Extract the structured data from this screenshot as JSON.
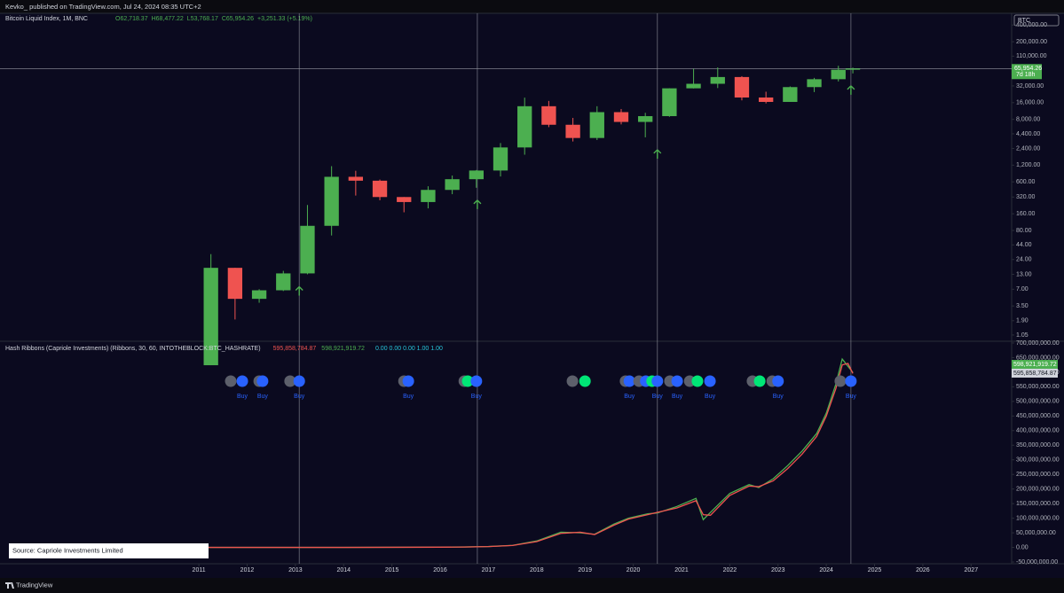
{
  "header": {
    "text": "Kevko_ published on TradingView.com, Jul 24, 2024 08:35 UTC+2"
  },
  "chart_data": [
    {
      "type": "candlestick",
      "title": "Bitcoin Liquid Index, 1M, BNC",
      "info": [
        "O62,718.37",
        "H68,477.22",
        "L53,768.17",
        "C65,954.26",
        "+3,251.33 (+5.19%)"
      ],
      "symbol": "BTC",
      "countdown": "7d 18h",
      "last_price": {
        "value": 65954.26,
        "label": "65,954.26"
      },
      "x": [
        2011.25,
        2011.75,
        2012.25,
        2012.75,
        2013.25,
        2013.75,
        2014.25,
        2014.75,
        2015.25,
        2015.75,
        2016.25,
        2016.75,
        2017.25,
        2017.75,
        2018.25,
        2018.75,
        2019.25,
        2019.75,
        2020.25,
        2020.75,
        2021.25,
        2021.75,
        2022.25,
        2022.75,
        2023.25,
        2023.75,
        2024.25,
        2024.55
      ],
      "open": [
        0.3,
        17,
        4.7,
        6.7,
        13.5,
        97,
        740,
        630,
        320,
        260,
        430,
        670,
        960,
        2500,
        13800,
        6400,
        3700,
        10800,
        7200,
        9150,
        29000,
        35000,
        46300,
        19800,
        16500,
        30500,
        42300,
        62718.37
      ],
      "high": [
        30,
        17,
        7,
        15,
        230,
        1150,
        950,
        660,
        320,
        500,
        780,
        980,
        3000,
        19700,
        17200,
        8500,
        13800,
        12300,
        10500,
        29000,
        64800,
        69000,
        48000,
        25200,
        31400,
        44700,
        73800,
        68477.22
      ],
      "low": [
        0.3,
        2,
        4,
        6.5,
        13,
        65,
        340,
        280,
        170,
        200,
        360,
        470,
        750,
        1850,
        5800,
        3200,
        3400,
        6500,
        3800,
        8900,
        28800,
        29300,
        17600,
        15500,
        16500,
        24800,
        38500,
        53768.17
      ],
      "close": [
        17,
        4.7,
        6.7,
        13.5,
        97,
        740,
        630,
        320,
        260,
        430,
        670,
        960,
        2500,
        13800,
        6400,
        3700,
        10800,
        7200,
        9150,
        29000,
        35000,
        46300,
        19800,
        16500,
        30500,
        42300,
        62700,
        65954.26
      ],
      "up_color": "#4caf50",
      "down_color": "#ef5350",
      "log_scale": true,
      "xlim": [
        2006.88,
        2027.84
      ],
      "ylim": [
        0.81,
        650000
      ],
      "yticks": [
        {
          "value": 400000,
          "label": "400,000.00"
        },
        {
          "value": 200000,
          "label": "200,000.00"
        },
        {
          "value": 110000,
          "label": "110,000.00"
        },
        {
          "value": 32000,
          "label": "32,000.00"
        },
        {
          "value": 16000,
          "label": "16,000.00"
        },
        {
          "value": 8000,
          "label": "8,000.00"
        },
        {
          "value": 4400,
          "label": "4,400.00"
        },
        {
          "value": 2400,
          "label": "2,400.00"
        },
        {
          "value": 1200,
          "label": "1,200.00"
        },
        {
          "value": 600,
          "label": "600.00"
        },
        {
          "value": 320,
          "label": "320.00"
        },
        {
          "value": 160,
          "label": "160.00"
        },
        {
          "value": 80,
          "label": "80.00"
        },
        {
          "value": 44,
          "label": "44.00"
        },
        {
          "value": 24,
          "label": "24.00"
        },
        {
          "value": 13,
          "label": "13.00"
        },
        {
          "value": 7,
          "label": "7.00"
        },
        {
          "value": 3.5,
          "label": "3.50"
        },
        {
          "value": 1.9,
          "label": "1.90"
        },
        {
          "value": 1.05,
          "label": "1.05"
        }
      ],
      "vlines": [
        2013.08,
        2016.77,
        2020.5,
        2024.51
      ]
    },
    {
      "type": "line",
      "title": "Hash Ribbons (Capriole Investments) (Ribbons, 30, 60, INTOTHEBLOCK:BTC_HASHRATE)",
      "extra": "0.00  0.00  0.00  1.00  1.00",
      "x": [
        2011,
        2012,
        2013,
        2014,
        2015,
        2016,
        2016.5,
        2017,
        2017.5,
        2018,
        2018.5,
        2018.9,
        2019.2,
        2019.6,
        2019.9,
        2020.3,
        2020.5,
        2020.9,
        2021.3,
        2021.45,
        2021.6,
        2022,
        2022.4,
        2022.6,
        2022.9,
        2023.2,
        2023.5,
        2023.8,
        2024,
        2024.2,
        2024.33,
        2024.45,
        2024.55
      ],
      "series": [
        {
          "color": "#4caf50",
          "last": {
            "value": 598921919.72,
            "label": "598,921,919.72"
          },
          "values": [
            10000,
            10000,
            20000,
            50000,
            350000,
            800000,
            1500000,
            3000000,
            7000000,
            22000000,
            52000000,
            50000000,
            45000000,
            80000000,
            100000000,
            115000000,
            118000000,
            140000000,
            168000000,
            95000000,
            120000000,
            185000000,
            215000000,
            205000000,
            235000000,
            280000000,
            330000000,
            390000000,
            460000000,
            560000000,
            645000000,
            620000000,
            598921919.72
          ]
        },
        {
          "color": "#ef5350",
          "last": {
            "value": 595858784.87,
            "label": "595,858,784.87"
          },
          "values": [
            10000,
            10000,
            20000,
            50000,
            330000,
            750000,
            1400000,
            2800000,
            6500000,
            20000000,
            48000000,
            52000000,
            44000000,
            76000000,
            97000000,
            112000000,
            120000000,
            135000000,
            160000000,
            112000000,
            110000000,
            178000000,
            210000000,
            208000000,
            228000000,
            270000000,
            320000000,
            380000000,
            450000000,
            545000000,
            625000000,
            630000000,
            595858784.87
          ]
        }
      ],
      "signals": [
        {
          "x": 2011.66,
          "color": "#5d606b"
        },
        {
          "x": 2011.9,
          "color": "#2962ff",
          "label": "Buy"
        },
        {
          "x": 2012.25,
          "color": "#5d606b"
        },
        {
          "x": 2012.32,
          "color": "#2962ff",
          "label": "Buy"
        },
        {
          "x": 2012.89,
          "color": "#5d606b"
        },
        {
          "x": 2013.08,
          "color": "#2962ff",
          "label": "Buy"
        },
        {
          "x": 2015.25,
          "color": "#5d606b"
        },
        {
          "x": 2015.34,
          "color": "#2962ff",
          "label": "Buy"
        },
        {
          "x": 2016.5,
          "color": "#5d606b"
        },
        {
          "x": 2016.57,
          "color": "#00e676"
        },
        {
          "x": 2016.75,
          "color": "#2962ff",
          "label": "Buy"
        },
        {
          "x": 2018.74,
          "color": "#5d606b"
        },
        {
          "x": 2019.0,
          "color": "#00e676"
        },
        {
          "x": 2019.84,
          "color": "#5d606b"
        },
        {
          "x": 2019.92,
          "color": "#2962ff",
          "label": "Buy"
        },
        {
          "x": 2020.12,
          "color": "#5d606b"
        },
        {
          "x": 2020.26,
          "color": "#2962ff"
        },
        {
          "x": 2020.39,
          "color": "#00e676"
        },
        {
          "x": 2020.5,
          "color": "#2962ff",
          "label": "Buy"
        },
        {
          "x": 2020.76,
          "color": "#5d606b"
        },
        {
          "x": 2020.91,
          "color": "#2962ff",
          "label": "Buy"
        },
        {
          "x": 2021.17,
          "color": "#5d606b"
        },
        {
          "x": 2021.33,
          "color": "#00e676"
        },
        {
          "x": 2021.59,
          "color": "#2962ff",
          "label": "Buy"
        },
        {
          "x": 2022.47,
          "color": "#5d606b"
        },
        {
          "x": 2022.62,
          "color": "#00e676"
        },
        {
          "x": 2022.88,
          "color": "#5d606b"
        },
        {
          "x": 2023.0,
          "color": "#2962ff",
          "label": "Buy"
        },
        {
          "x": 2024.29,
          "color": "#5d606b"
        },
        {
          "x": 2024.51,
          "color": "#2962ff",
          "label": "Buy"
        }
      ],
      "xlim": [
        2006.88,
        2027.84
      ],
      "ylim": [
        -56000000,
        706000000
      ],
      "xticks": [
        2011,
        2012,
        2013,
        2014,
        2015,
        2016,
        2017,
        2018,
        2019,
        2020,
        2021,
        2022,
        2023,
        2024,
        2025,
        2026,
        2027
      ],
      "yticks": [
        {
          "value": 700000000,
          "label": "700,000,000.00"
        },
        {
          "value": 650000000,
          "label": "650,000,000.00"
        },
        {
          "value": 600000000,
          "label": "600,000,000.00"
        },
        {
          "value": 550000000,
          "label": "550,000,000.00"
        },
        {
          "value": 500000000,
          "label": "500,000,000.00"
        },
        {
          "value": 450000000,
          "label": "450,000,000.00"
        },
        {
          "value": 400000000,
          "label": "400,000,000.00"
        },
        {
          "value": 350000000,
          "label": "350,000,000.00"
        },
        {
          "value": 300000000,
          "label": "300,000,000.00"
        },
        {
          "value": 250000000,
          "label": "250,000,000.00"
        },
        {
          "value": 200000000,
          "label": "200,000,000.00"
        },
        {
          "value": 150000000,
          "label": "150,000,000.00"
        },
        {
          "value": 100000000,
          "label": "100,000,000.00"
        },
        {
          "value": 50000000,
          "label": "50,000,000.00"
        },
        {
          "value": 0,
          "label": "0.00"
        },
        {
          "value": -50000000,
          "label": "-50,000,000.00"
        }
      ]
    }
  ],
  "source_note": "Source: Capriole Investments Limited",
  "footer": {
    "brand": "TradingView"
  }
}
